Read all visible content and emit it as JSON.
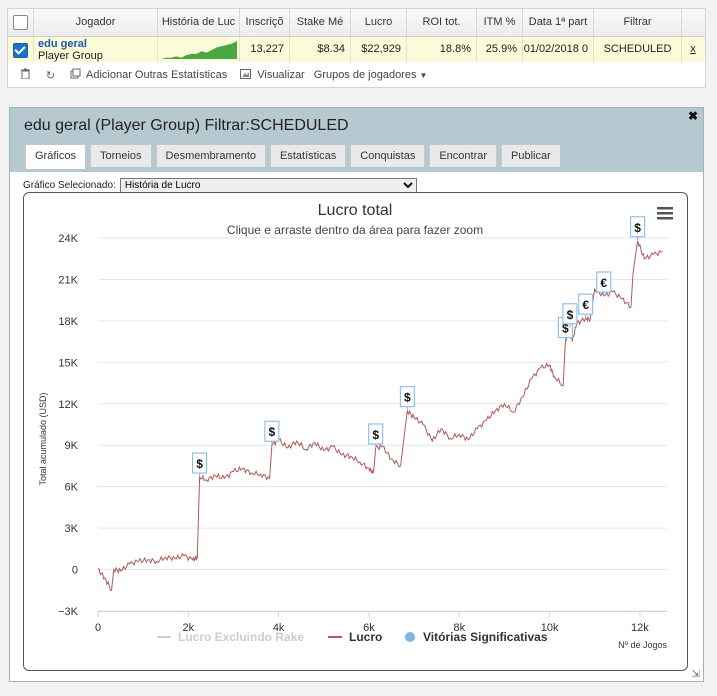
{
  "table": {
    "headers": [
      "Jogador",
      "História de Luc",
      "Inscriçõ",
      "Stake Mé",
      "Lucro",
      "ROI tot.",
      "ITM %",
      "Data 1ª part",
      "Filtrar"
    ],
    "row": {
      "player_name": "edu geral",
      "player_type": "Player Group",
      "inscricoes": "13,227",
      "stake_medio": "$8.34",
      "lucro": "$22,929",
      "roi": "18.8%",
      "itm": "25.9%",
      "data": "01/02/2018 0",
      "filtrar": "SCHEDULED",
      "remove": "x"
    },
    "spark": [
      0,
      1,
      1,
      2,
      1,
      3,
      4,
      4,
      6,
      5,
      7,
      9,
      10,
      11,
      12,
      14
    ]
  },
  "toolbar": {
    "add_stats": "Adicionar Outras Estatísticas",
    "view": "Visualizar",
    "groups": "Grupos de jogadores"
  },
  "panel": {
    "title": "edu geral (Player Group) Filtrar:",
    "filter": "SCHEDULED",
    "tabs": [
      "Gráficos",
      "Torneios",
      "Desmembramento",
      "Estatísticas",
      "Conquistas",
      "Encontrar",
      "Publicar"
    ],
    "graph_label": "Gráfico Selecionado:",
    "graph_value": "História de Lucro"
  },
  "chart_data": {
    "type": "line",
    "title": "Lucro total",
    "subtitle": "Clique e arraste dentro da área para fazer zoom",
    "ylabel": "Total acumulado (USD)",
    "xlabel": "Nº de Jogos",
    "ylim": [
      -3000,
      24000
    ],
    "xlim": [
      0,
      12600
    ],
    "yticks": [
      {
        "v": 24000,
        "l": "24K"
      },
      {
        "v": 21000,
        "l": "21K"
      },
      {
        "v": 18000,
        "l": "18K"
      },
      {
        "v": 15000,
        "l": "15K"
      },
      {
        "v": 12000,
        "l": "12K"
      },
      {
        "v": 9000,
        "l": "9K"
      },
      {
        "v": 6000,
        "l": "6K"
      },
      {
        "v": 3000,
        "l": "3K"
      },
      {
        "v": 0,
        "l": "0"
      },
      {
        "v": -3000,
        "l": "−3K"
      }
    ],
    "xticks": [
      {
        "v": 0,
        "l": "0"
      },
      {
        "v": 2000,
        "l": "2k"
      },
      {
        "v": 4000,
        "l": "4k"
      },
      {
        "v": 6000,
        "l": "6k"
      },
      {
        "v": 8000,
        "l": "8k"
      },
      {
        "v": 10000,
        "l": "10k"
      },
      {
        "v": 12000,
        "l": "12k"
      }
    ],
    "series": [
      {
        "name": "Lucro Excluindo Rake",
        "color": "#cccccc",
        "values": []
      },
      {
        "name": "Lucro",
        "color": "#b05a5a",
        "values": [
          [
            0,
            0
          ],
          [
            150,
            -600
          ],
          [
            300,
            -1500
          ],
          [
            350,
            0
          ],
          [
            500,
            -100
          ],
          [
            700,
            400
          ],
          [
            900,
            600
          ],
          [
            1100,
            700
          ],
          [
            1300,
            600
          ],
          [
            1500,
            900
          ],
          [
            1700,
            800
          ],
          [
            1900,
            1000
          ],
          [
            2100,
            700
          ],
          [
            2200,
            900
          ],
          [
            2250,
            6700
          ],
          [
            2400,
            6500
          ],
          [
            2600,
            6800
          ],
          [
            2800,
            6600
          ],
          [
            3000,
            7100
          ],
          [
            3200,
            7300
          ],
          [
            3400,
            7000
          ],
          [
            3600,
            6900
          ],
          [
            3800,
            6600
          ],
          [
            3850,
            9000
          ],
          [
            4000,
            9400
          ],
          [
            4200,
            8800
          ],
          [
            4400,
            9300
          ],
          [
            4600,
            8700
          ],
          [
            4800,
            9200
          ],
          [
            5000,
            8600
          ],
          [
            5200,
            8900
          ],
          [
            5400,
            8300
          ],
          [
            5600,
            8200
          ],
          [
            5800,
            7800
          ],
          [
            6000,
            7300
          ],
          [
            6100,
            7000
          ],
          [
            6150,
            8800
          ],
          [
            6300,
            8900
          ],
          [
            6500,
            8000
          ],
          [
            6700,
            7500
          ],
          [
            6850,
            11500
          ],
          [
            7000,
            11000
          ],
          [
            7200,
            10500
          ],
          [
            7400,
            9300
          ],
          [
            7600,
            10200
          ],
          [
            7800,
            9500
          ],
          [
            8000,
            9800
          ],
          [
            8200,
            9400
          ],
          [
            8400,
            10200
          ],
          [
            8600,
            10800
          ],
          [
            8800,
            11500
          ],
          [
            9000,
            12000
          ],
          [
            9200,
            11400
          ],
          [
            9400,
            12500
          ],
          [
            9600,
            13800
          ],
          [
            9800,
            14600
          ],
          [
            10000,
            14800
          ],
          [
            10100,
            14000
          ],
          [
            10300,
            13300
          ],
          [
            10350,
            16500
          ],
          [
            10450,
            17500
          ],
          [
            10500,
            16500
          ],
          [
            10600,
            17800
          ],
          [
            10800,
            18200
          ],
          [
            10900,
            18100
          ],
          [
            11000,
            20300
          ],
          [
            11200,
            19800
          ],
          [
            11400,
            20100
          ],
          [
            11600,
            19600
          ],
          [
            11800,
            19000
          ],
          [
            11850,
            21500
          ],
          [
            11950,
            23800
          ],
          [
            12100,
            22500
          ],
          [
            12300,
            22800
          ],
          [
            12500,
            23000
          ]
        ]
      }
    ],
    "markers": [
      {
        "x": 2250,
        "y": 6700,
        "symbol": "$"
      },
      {
        "x": 3850,
        "y": 9000,
        "symbol": "$"
      },
      {
        "x": 6150,
        "y": 8800,
        "symbol": "$"
      },
      {
        "x": 6850,
        "y": 11500,
        "symbol": "$"
      },
      {
        "x": 10350,
        "y": 16500,
        "symbol": "$"
      },
      {
        "x": 10450,
        "y": 17500,
        "symbol": "$"
      },
      {
        "x": 10800,
        "y": 18200,
        "symbol": "€"
      },
      {
        "x": 11200,
        "y": 19800,
        "symbol": "€"
      },
      {
        "x": 11950,
        "y": 23800,
        "symbol": "$"
      }
    ],
    "legend": [
      {
        "name": "Lucro Excluindo Rake",
        "color": "#cccccc"
      },
      {
        "name": "Lucro",
        "color": "#b05a5a"
      },
      {
        "name": "Vitórias Significativas",
        "color": "#7cb5ec"
      }
    ],
    "grid": true
  },
  "colors": {
    "accent": "#1a73c9",
    "panel_header": "#b6c9d1",
    "row_highlight": "#fbfbd9",
    "spark": "#4aa844"
  }
}
